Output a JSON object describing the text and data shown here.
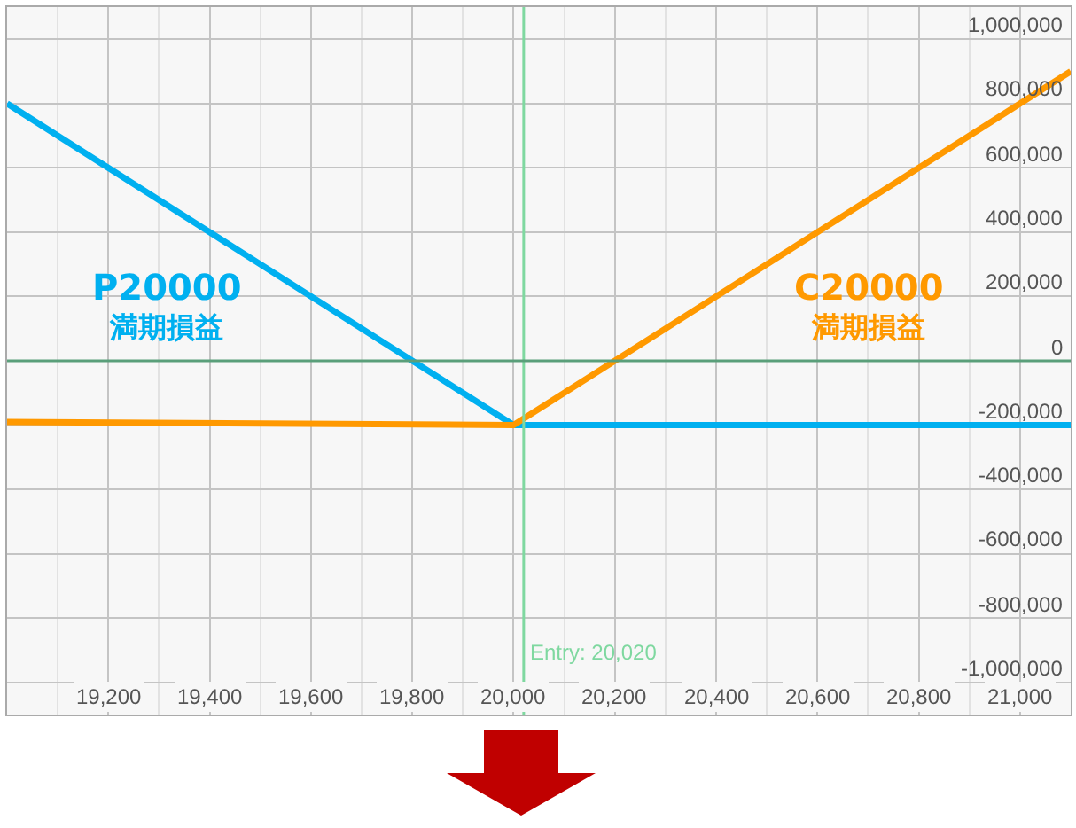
{
  "chart_data": {
    "type": "line",
    "series": [
      {
        "name": "P20000 満期損益",
        "color": "#00b0f0",
        "x": [
          19000,
          20000,
          21100
        ],
        "values": [
          800000,
          -200000,
          -200000
        ]
      },
      {
        "name": "C20000 満期損益",
        "color": "#ff9900",
        "x": [
          19000,
          20000,
          21100
        ],
        "values": [
          -190000,
          -200000,
          900000
        ]
      }
    ],
    "xlim": [
      19000,
      21100
    ],
    "xticks": [
      {
        "value": 19200,
        "label": "19,200"
      },
      {
        "value": 19400,
        "label": "19,400"
      },
      {
        "value": 19600,
        "label": "19,600"
      },
      {
        "value": 19800,
        "label": "19,800"
      },
      {
        "value": 20000,
        "label": "20,000"
      },
      {
        "value": 20200,
        "label": "20,200"
      },
      {
        "value": 20400,
        "label": "20,400"
      },
      {
        "value": 20600,
        "label": "20,600"
      },
      {
        "value": 20800,
        "label": "20,800"
      },
      {
        "value": 21000,
        "label": "21,000"
      }
    ],
    "ylim": [
      -1100000,
      1100000
    ],
    "yticks": [
      {
        "value": -1000000,
        "label": "-1,000,000"
      },
      {
        "value": -800000,
        "label": "-800,000"
      },
      {
        "value": -600000,
        "label": "-600,000"
      },
      {
        "value": -400000,
        "label": "-400,000"
      },
      {
        "value": -200000,
        "label": "-200,000"
      },
      0,
      {
        "value": 200000,
        "label": "200,000"
      },
      {
        "value": 400000,
        "label": "400,000"
      },
      {
        "value": 600000,
        "label": "600,000"
      },
      {
        "value": 800000,
        "label": "800,000"
      },
      {
        "value": 1000000,
        "label": "1,000,000"
      }
    ],
    "ref_lines": [
      {
        "axis": "x",
        "value": 20020,
        "label": "Entry: 20,020",
        "color": "#7fd8a0"
      },
      {
        "axis": "y",
        "value": 0,
        "color": "#5a9f7a"
      }
    ],
    "grid": true,
    "legend": false
  }
}
